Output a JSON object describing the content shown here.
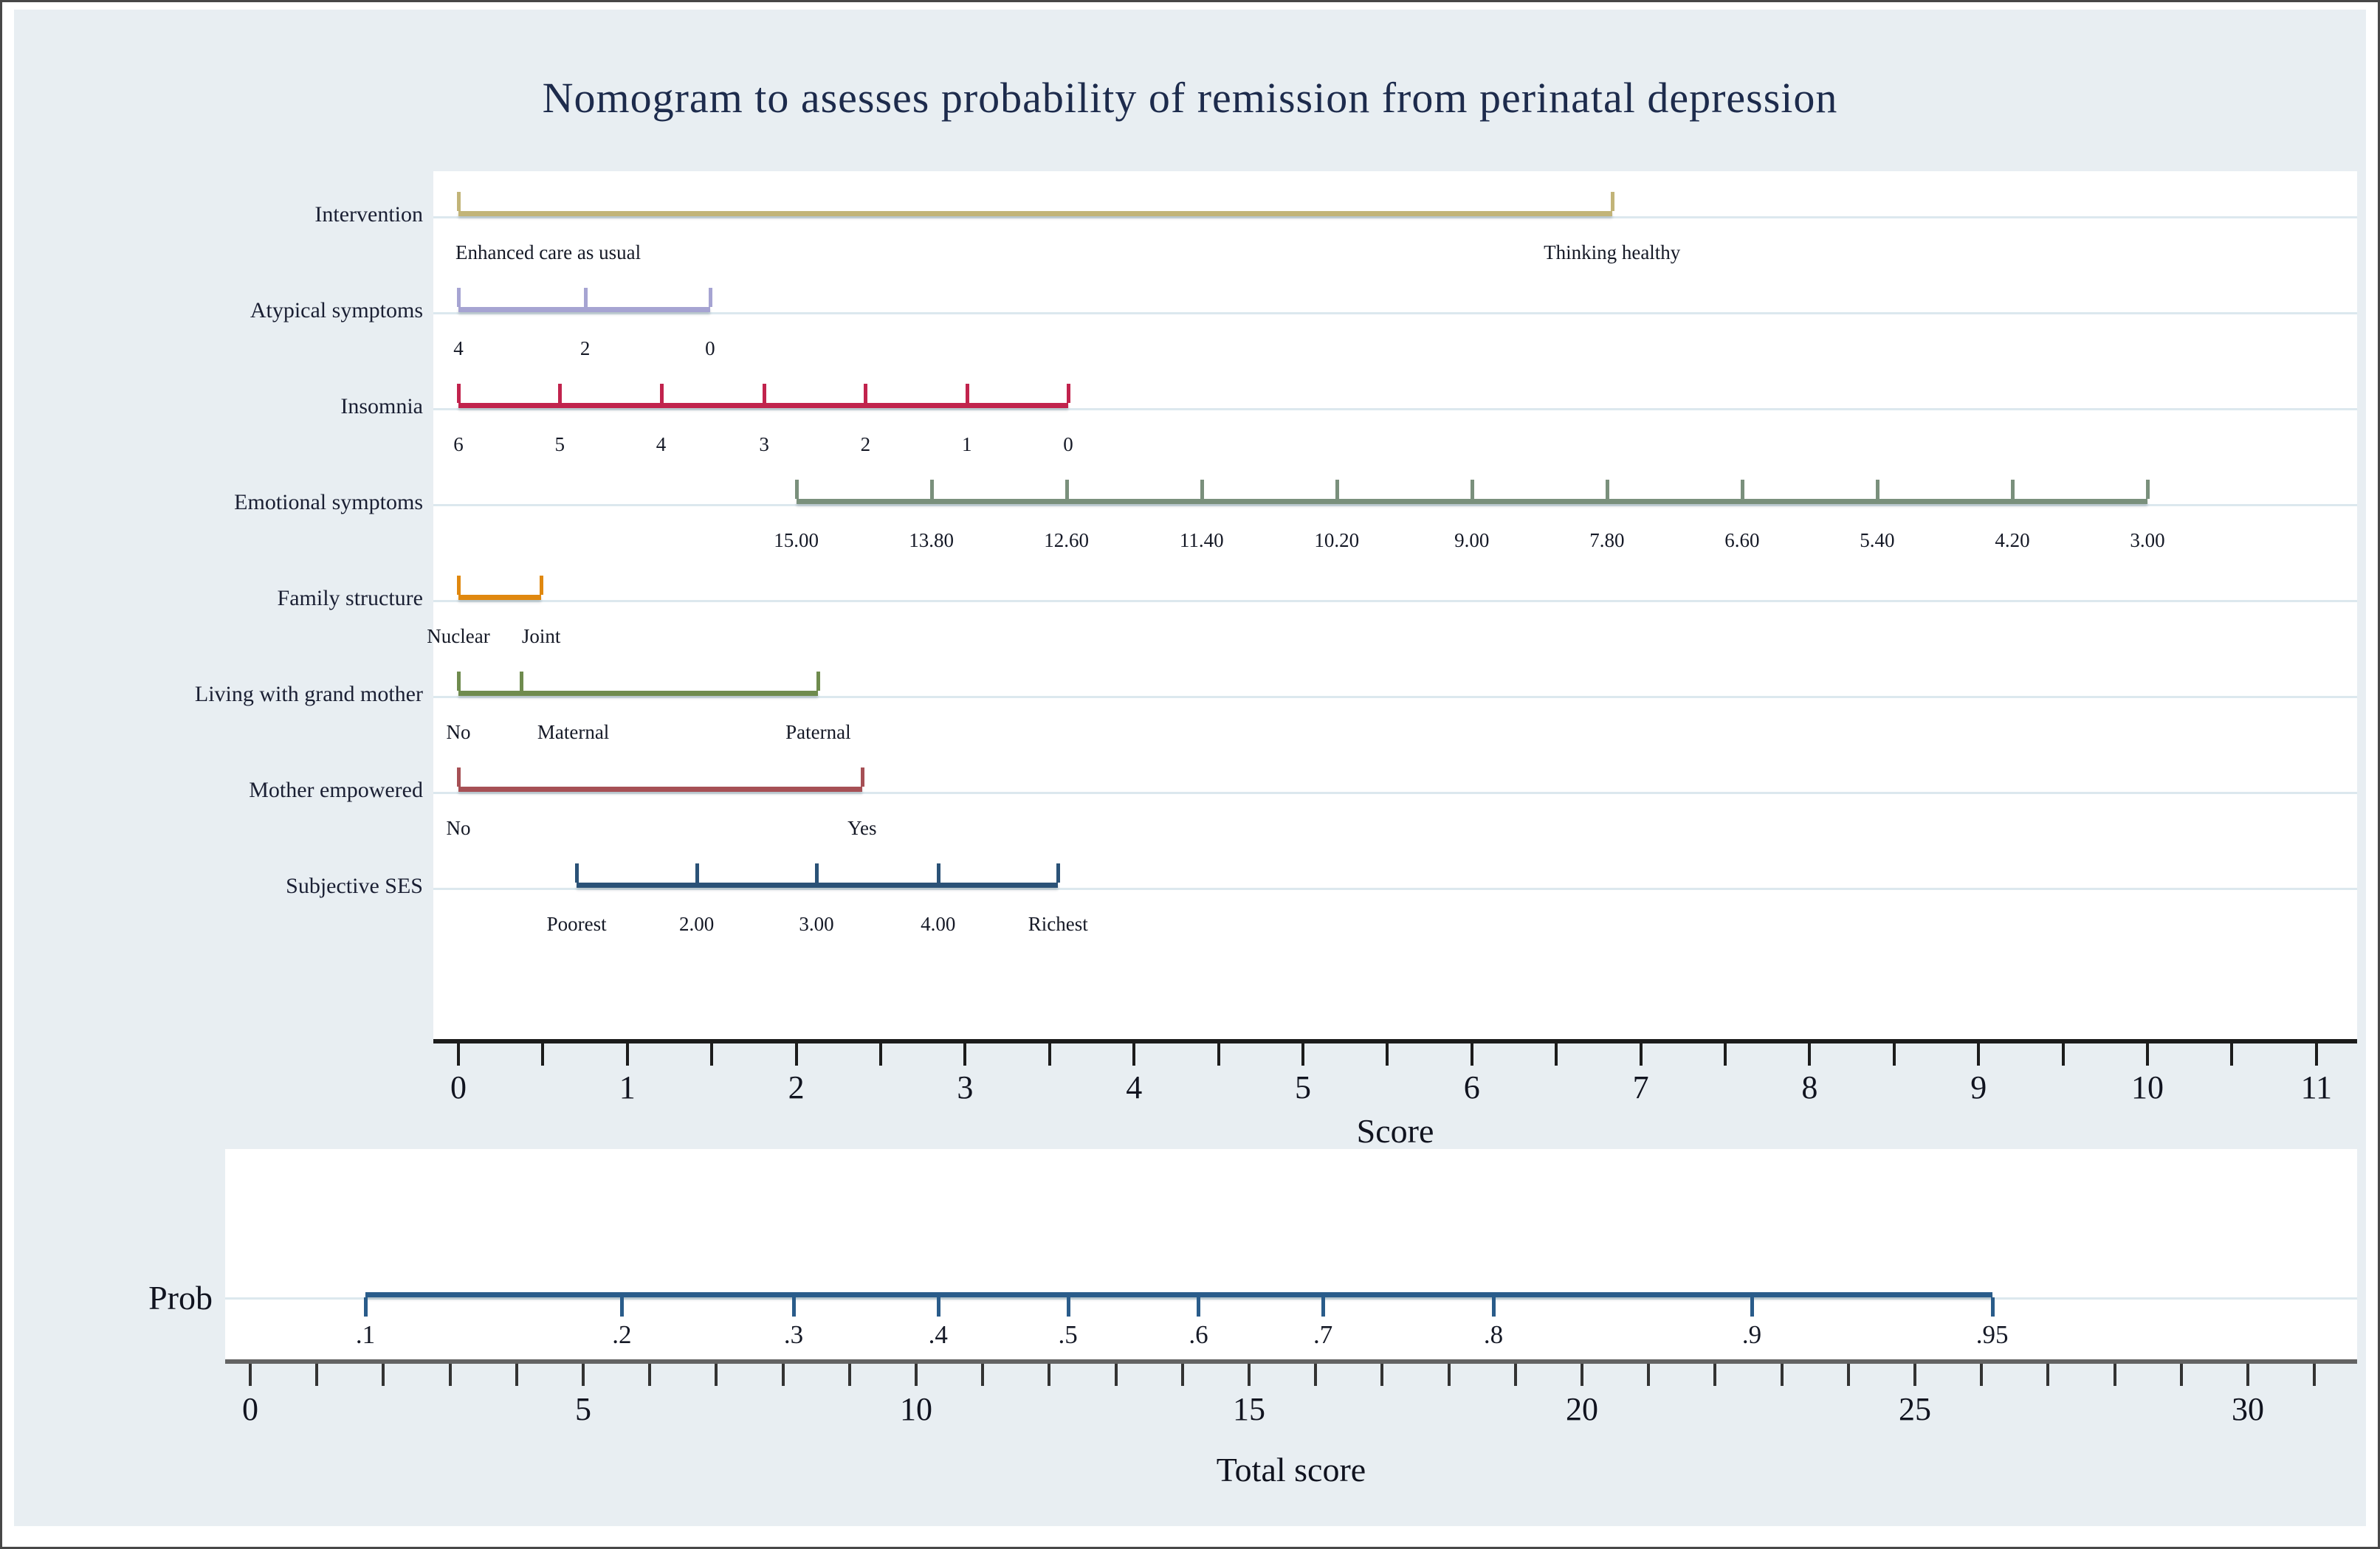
{
  "title": "Nomogram to asesses probability of remission from perinatal depression",
  "chart_data": {
    "type": "table",
    "title": "Nomogram to asesses probability of remission from perinatal depression",
    "description_rows_are_point_scales": true,
    "axes": [
      {
        "variable": "Intervention",
        "color": "#c2b478",
        "entries": [
          {
            "label": "Enhanced care as usual",
            "score": 0,
            "align": "left"
          },
          {
            "label": "Thinking healthy",
            "score": 6.83
          }
        ]
      },
      {
        "variable": "Atypical symptoms",
        "color": "#a6a4d2",
        "entries": [
          {
            "label": "4",
            "score": 0
          },
          {
            "label": "2",
            "score": 0.75
          },
          {
            "label": "0",
            "score": 1.49
          }
        ]
      },
      {
        "variable": "Insomnia",
        "color": "#c1234d",
        "entries": [
          {
            "label": "6",
            "score": 0
          },
          {
            "label": "5",
            "score": 0.6
          },
          {
            "label": "4",
            "score": 1.2
          },
          {
            "label": "3",
            "score": 1.81
          },
          {
            "label": "2",
            "score": 2.41
          },
          {
            "label": "1",
            "score": 3.01
          },
          {
            "label": "0",
            "score": 3.61
          }
        ]
      },
      {
        "variable": "Emotional symptoms",
        "color": "#7a907c",
        "entries": [
          {
            "label": "15.00",
            "score": 2.0
          },
          {
            "label": "13.80",
            "score": 2.8
          },
          {
            "label": "12.60",
            "score": 3.6
          },
          {
            "label": "11.40",
            "score": 4.4
          },
          {
            "label": "10.20",
            "score": 5.2
          },
          {
            "label": "9.00",
            "score": 6.0
          },
          {
            "label": "7.80",
            "score": 6.8
          },
          {
            "label": "6.60",
            "score": 7.6
          },
          {
            "label": "5.40",
            "score": 8.4
          },
          {
            "label": "4.20",
            "score": 9.2
          },
          {
            "label": "3.00",
            "score": 10.0
          }
        ]
      },
      {
        "variable": "Family structure",
        "color": "#e0880f",
        "entries": [
          {
            "label": "Nuclear",
            "score": 0
          },
          {
            "label": "Joint",
            "score": 0.49
          }
        ]
      },
      {
        "variable": "Living with grand mother",
        "color": "#6f8b4e",
        "entries": [
          {
            "label": "No",
            "score": 0
          },
          {
            "label": "Maternal",
            "score": 0.37,
            "label_score": 0.68
          },
          {
            "label": "Paternal",
            "score": 2.13
          }
        ]
      },
      {
        "variable": "Mother empowered",
        "color": "#a65055",
        "entries": [
          {
            "label": "No",
            "score": 0
          },
          {
            "label": "Yes",
            "score": 2.39
          }
        ]
      },
      {
        "variable": "Subjective SES",
        "color": "#2b5277",
        "entries": [
          {
            "label": "Poorest",
            "score": 0.7
          },
          {
            "label": "2.00",
            "score": 1.41
          },
          {
            "label": "3.00",
            "score": 2.12
          },
          {
            "label": "4.00",
            "score": 2.84
          },
          {
            "label": "Richest",
            "score": 3.55
          }
        ]
      }
    ],
    "score_axis": {
      "label": "Score",
      "min": 0,
      "max": 11,
      "major_step": 1,
      "minor_step": 0.5,
      "color": "#1c1c1c"
    },
    "probability_axis": {
      "label": "Prob",
      "color": "#2a5c8a",
      "ticks": [
        {
          "label": ".1",
          "total_score": 1.73
        },
        {
          "label": ".2",
          "total_score": 5.58
        },
        {
          "label": ".3",
          "total_score": 8.16
        },
        {
          "label": ".4",
          "total_score": 10.33
        },
        {
          "label": ".5",
          "total_score": 12.28
        },
        {
          "label": ".6",
          "total_score": 14.24
        },
        {
          "label": ".7",
          "total_score": 16.11
        },
        {
          "label": ".8",
          "total_score": 18.67
        },
        {
          "label": ".9",
          "total_score": 22.55
        },
        {
          "label": ".95",
          "total_score": 26.16
        }
      ]
    },
    "total_score_axis": {
      "label": "Total score",
      "min": 0,
      "max": 30,
      "major_step": 5,
      "minor_step": 1,
      "minor_max": 31,
      "color": "#636363"
    },
    "layout_hints": {
      "background": "#e8eef2",
      "plot_background": "#ffffff",
      "grid": "pale horizontal reference lines per row",
      "legend": "none"
    }
  }
}
